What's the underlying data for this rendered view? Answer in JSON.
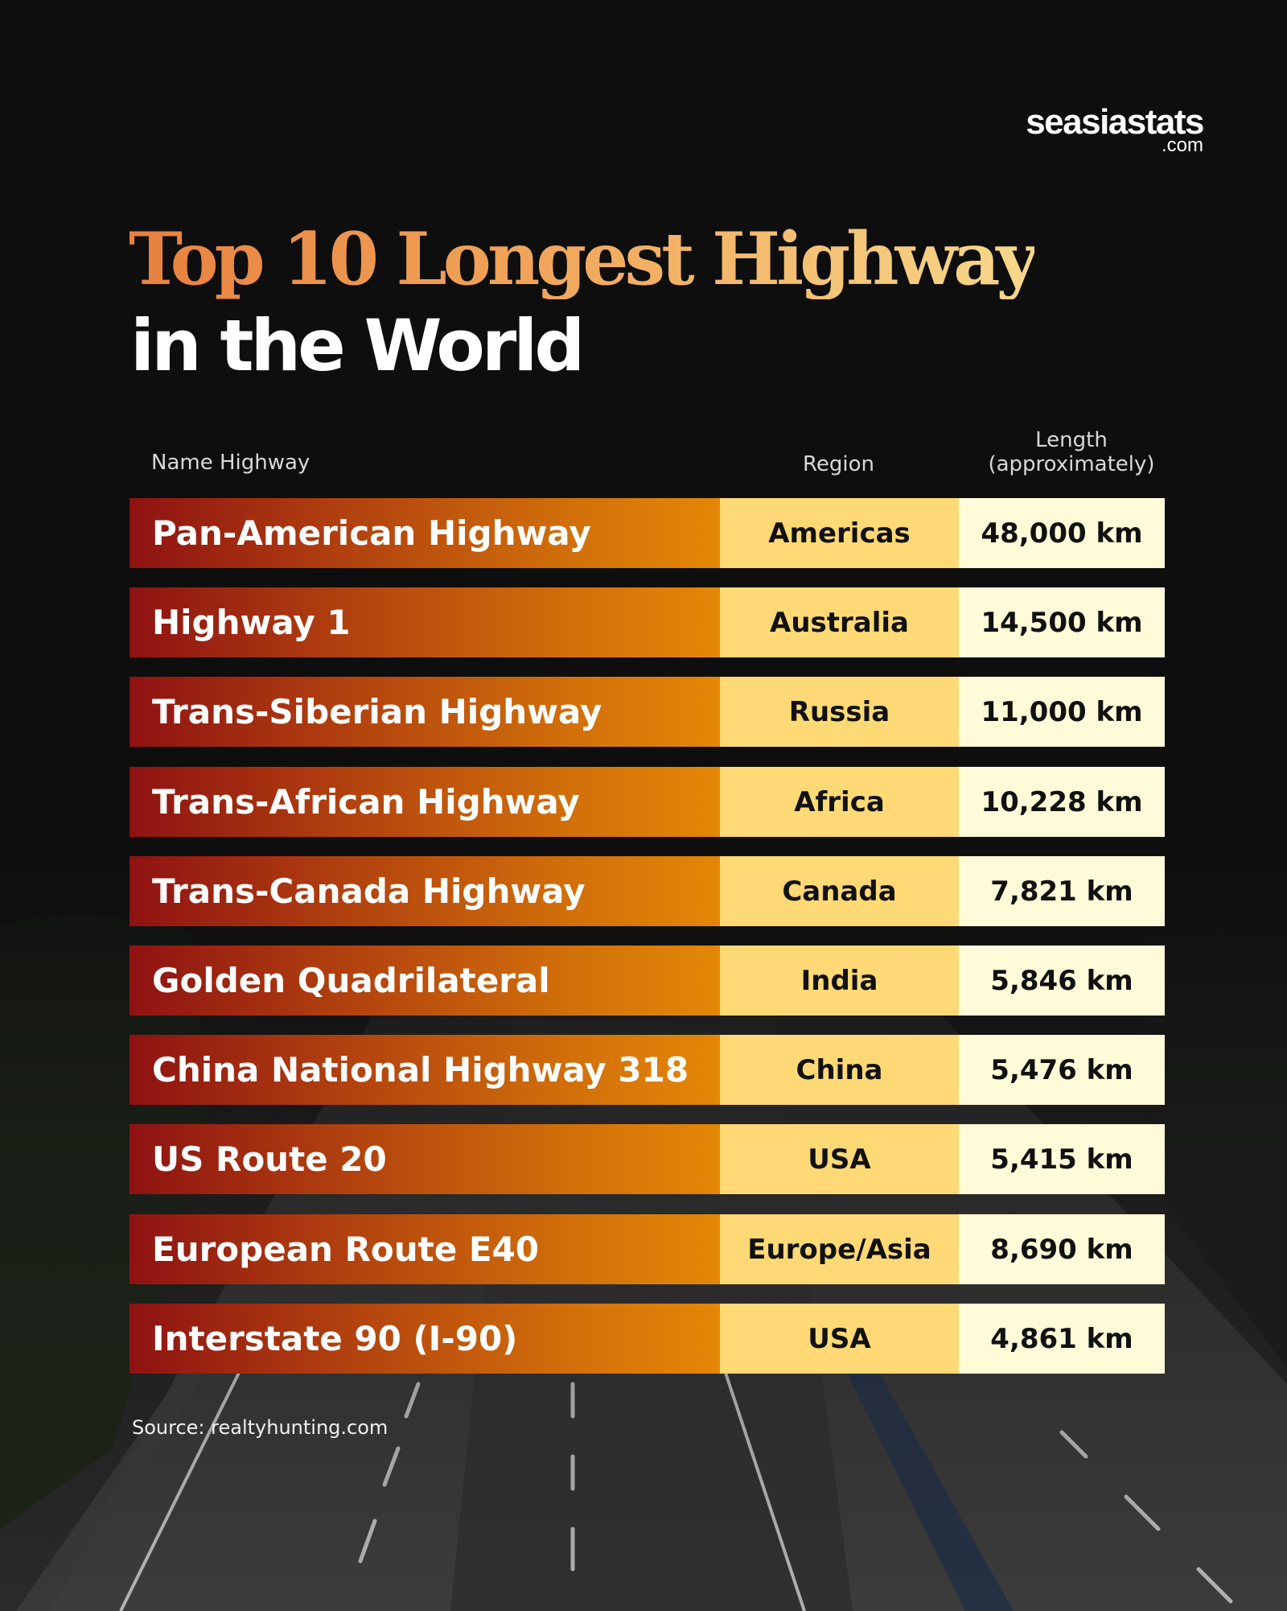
{
  "brand": {
    "name": "seasiastats",
    "suffix": ".com"
  },
  "title": {
    "line1": "Top 10 Longest Highway",
    "line2": "in the World"
  },
  "colors": {
    "title_start": "#e8803f",
    "title_end": "#f7d88a",
    "bar_dark": "#8e1212",
    "bar_light": "#e48706",
    "region_fill": "#ffd975",
    "length_fill": "#fffbd8"
  },
  "chart_data": {
    "type": "table",
    "title": "Top 10 Longest Highway in the World",
    "columns": [
      "Name Highway",
      "Region",
      "Length\n(approximately)"
    ],
    "rows": [
      {
        "name": "Pan-American Highway",
        "region": "Americas",
        "length": "48,000 km",
        "length_km": 48000
      },
      {
        "name": "Highway 1",
        "region": "Australia",
        "length": "14,500 km",
        "length_km": 14500
      },
      {
        "name": "Trans-Siberian Highway",
        "region": "Russia",
        "length": "11,000 km",
        "length_km": 11000
      },
      {
        "name": "Trans-African Highway",
        "region": "Africa",
        "length": "10,228 km",
        "length_km": 10228
      },
      {
        "name": "Trans-Canada Highway",
        "region": "Canada",
        "length": "7,821 km",
        "length_km": 7821
      },
      {
        "name": "Golden Quadrilateral",
        "region": "India",
        "length": "5,846 km",
        "length_km": 5846
      },
      {
        "name": "China National Highway 318",
        "region": "China",
        "length": "5,476 km",
        "length_km": 5476
      },
      {
        "name": "US Route 20",
        "region": "USA",
        "length": "5,415 km",
        "length_km": 5415
      },
      {
        "name": "European Route E40",
        "region": "Europe/Asia",
        "length": "8,690 km",
        "length_km": 8690
      },
      {
        "name": "Interstate 90 (I-90)",
        "region": "USA",
        "length": "4,861 km",
        "length_km": 4861
      }
    ]
  },
  "source": "Source: realtyhunting.com"
}
